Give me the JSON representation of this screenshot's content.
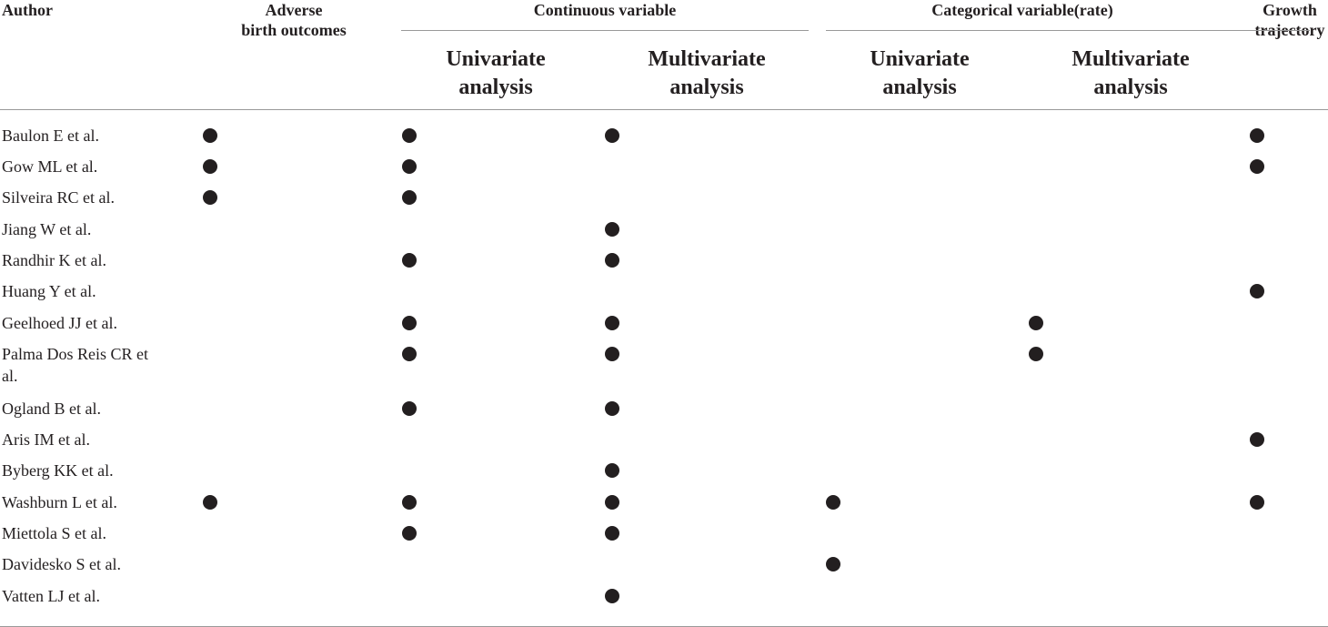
{
  "header": {
    "author": "Author",
    "adverse": "Adverse\nbirth outcomes",
    "continuous": "Continuous variable",
    "categorical": "Categorical variable(rate)",
    "growth": "Growth\ntrajectory",
    "subheaders": [
      "Univariate\nanalysis",
      "Multivariate\nanalysis",
      "Univariate\nanalysis",
      "Multivariate\nanalysis"
    ]
  },
  "table": {
    "rows": [
      {
        "author": "Baulon E et al.",
        "marks": [
          true,
          true,
          true,
          false,
          false,
          true
        ]
      },
      {
        "author": "Gow ML et al.",
        "marks": [
          true,
          true,
          false,
          false,
          false,
          true
        ]
      },
      {
        "author": "Silveira RC et al.",
        "marks": [
          true,
          true,
          false,
          false,
          false,
          false
        ]
      },
      {
        "author": "Jiang W et al.",
        "marks": [
          false,
          false,
          true,
          false,
          false,
          false
        ]
      },
      {
        "author": "Randhir K et al.",
        "marks": [
          false,
          true,
          true,
          false,
          false,
          false
        ]
      },
      {
        "author": "Huang Y et al.",
        "marks": [
          false,
          false,
          false,
          false,
          false,
          true
        ]
      },
      {
        "author": "Geelhoed JJ et al.",
        "marks": [
          false,
          true,
          true,
          false,
          true,
          false
        ]
      },
      {
        "author": "Palma Dos Reis CR et al.",
        "marks": [
          false,
          true,
          true,
          false,
          true,
          false
        ]
      },
      {
        "author": "Ogland B et al.",
        "marks": [
          false,
          true,
          true,
          false,
          false,
          false
        ]
      },
      {
        "author": "Aris IM et al.",
        "marks": [
          false,
          false,
          false,
          false,
          false,
          true
        ]
      },
      {
        "author": "Byberg KK et al.",
        "marks": [
          false,
          false,
          true,
          false,
          false,
          false
        ]
      },
      {
        "author": "Washburn L et al.",
        "marks": [
          true,
          true,
          true,
          true,
          false,
          true
        ]
      },
      {
        "author": "Miettola S et al.",
        "marks": [
          false,
          true,
          true,
          false,
          false,
          false
        ]
      },
      {
        "author": "Davidesko S et al.",
        "marks": [
          false,
          false,
          false,
          true,
          false,
          false
        ]
      },
      {
        "author": "Vatten LJ et al.",
        "marks": [
          false,
          false,
          true,
          false,
          false,
          false
        ]
      }
    ]
  }
}
